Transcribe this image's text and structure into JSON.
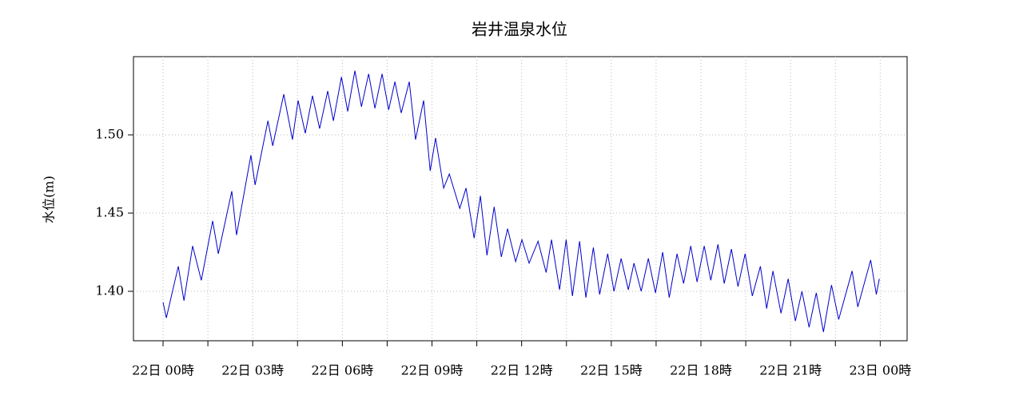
{
  "chart_data": {
    "type": "line",
    "title": "岩井温泉水位",
    "y_label": "水位(m)",
    "xlim": [
      -0.99,
      24.9
    ],
    "ylim": [
      1.3684,
      1.55
    ],
    "xticks": [
      {
        "value": 0,
        "label": "22日 00時"
      },
      {
        "value": 3,
        "label": "22日 03時"
      },
      {
        "value": 6,
        "label": "22日 06時"
      },
      {
        "value": 9,
        "label": "22日 09時"
      },
      {
        "value": 12,
        "label": "22日 12時"
      },
      {
        "value": 15,
        "label": "22日 15時"
      },
      {
        "value": 18,
        "label": "22日 18時"
      },
      {
        "value": 21,
        "label": "22日 21時"
      },
      {
        "value": 24,
        "label": "23日 00時"
      }
    ],
    "xminor_ticks": [
      1.5,
      4.5,
      7.5,
      10.5,
      13.5,
      16.5,
      19.5,
      22.5
    ],
    "yticks": [
      {
        "value": 1.4,
        "label": "1.40"
      },
      {
        "value": 1.45,
        "label": "1.45"
      },
      {
        "value": 1.5,
        "label": "1.50"
      }
    ],
    "grid": true,
    "series": [
      {
        "color": "#0000cc",
        "x": [
          0,
          0.11,
          0.51,
          0.7,
          0.99,
          1.28,
          1.66,
          1.85,
          2.3,
          2.46,
          2.94,
          3.08,
          3.51,
          3.67,
          4.04,
          4.33,
          4.52,
          4.76,
          5.0,
          5.24,
          5.51,
          5.7,
          5.97,
          6.18,
          6.42,
          6.64,
          6.88,
          7.09,
          7.33,
          7.55,
          7.76,
          7.97,
          8.24,
          8.45,
          8.72,
          8.94,
          9.12,
          9.39,
          9.58,
          9.93,
          10.14,
          10.41,
          10.62,
          10.84,
          11.08,
          11.32,
          11.53,
          11.8,
          12.01,
          12.25,
          12.55,
          12.82,
          13.0,
          13.27,
          13.49,
          13.7,
          13.94,
          14.15,
          14.4,
          14.61,
          14.88,
          15.09,
          15.33,
          15.57,
          15.76,
          16.0,
          16.24,
          16.48,
          16.72,
          16.94,
          17.2,
          17.42,
          17.66,
          17.87,
          18.11,
          18.33,
          18.57,
          18.78,
          19.02,
          19.24,
          19.48,
          19.72,
          19.99,
          20.2,
          20.41,
          20.68,
          20.92,
          21.16,
          21.38,
          21.62,
          21.86,
          22.1,
          22.37,
          22.61,
          23.06,
          23.25,
          23.68,
          23.87,
          23.97
        ],
        "values": [
          1.393,
          1.383,
          1.416,
          1.394,
          1.429,
          1.407,
          1.445,
          1.424,
          1.464,
          1.436,
          1.487,
          1.468,
          1.509,
          1.493,
          1.526,
          1.497,
          1.522,
          1.501,
          1.525,
          1.504,
          1.528,
          1.509,
          1.537,
          1.515,
          1.541,
          1.518,
          1.539,
          1.517,
          1.539,
          1.516,
          1.534,
          1.514,
          1.534,
          1.497,
          1.522,
          1.477,
          1.498,
          1.466,
          1.475,
          1.453,
          1.466,
          1.434,
          1.461,
          1.423,
          1.454,
          1.422,
          1.44,
          1.419,
          1.433,
          1.418,
          1.432,
          1.412,
          1.433,
          1.401,
          1.433,
          1.397,
          1.432,
          1.396,
          1.428,
          1.398,
          1.424,
          1.4,
          1.421,
          1.401,
          1.418,
          1.4,
          1.421,
          1.399,
          1.425,
          1.396,
          1.424,
          1.405,
          1.429,
          1.406,
          1.429,
          1.407,
          1.43,
          1.405,
          1.427,
          1.403,
          1.424,
          1.397,
          1.416,
          1.389,
          1.413,
          1.386,
          1.408,
          1.381,
          1.4,
          1.377,
          1.399,
          1.374,
          1.404,
          1.382,
          1.413,
          1.39,
          1.42,
          1.398,
          1.408
        ]
      }
    ]
  }
}
